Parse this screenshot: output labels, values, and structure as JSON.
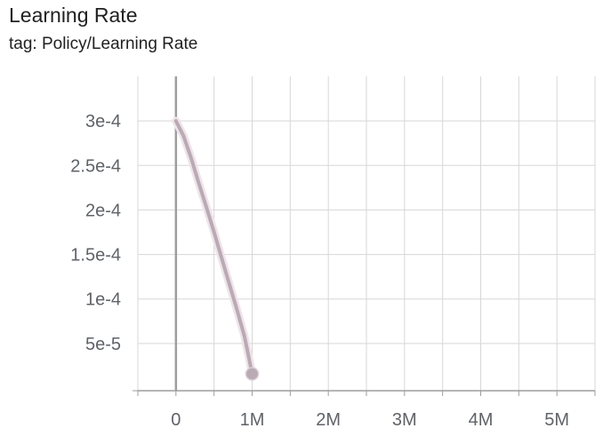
{
  "chart_data": {
    "type": "line",
    "title": "Learning Rate",
    "subtitle": "tag: Policy/Learning Rate",
    "xlabel": "",
    "ylabel": "",
    "xlim": [
      -500000,
      5500000
    ],
    "ylim": [
      -3e-06,
      0.00035
    ],
    "xticks": [
      0,
      1000000,
      2000000,
      3000000,
      4000000,
      5000000
    ],
    "xtick_labels": [
      "0",
      "1M",
      "2M",
      "3M",
      "4M",
      "5M"
    ],
    "yticks": [
      5e-05,
      0.0001,
      0.00015,
      0.0002,
      0.00025,
      0.0003
    ],
    "ytick_labels": [
      "5e-5",
      "1e-4",
      "1.5e-4",
      "2e-4",
      "2.5e-4",
      "3e-4"
    ],
    "grid": true,
    "series": [
      {
        "color": "#b9aab3",
        "x": [
          0,
          100000,
          200000,
          300000,
          400000,
          500000,
          600000,
          700000,
          800000,
          900000,
          1000000
        ],
        "y": [
          0.0003,
          0.000283,
          0.000258,
          0.00023,
          0.000203,
          0.000175,
          0.000146,
          0.000117,
          8.8e-05,
          5.8e-05,
          1.6e-05
        ]
      }
    ],
    "highlight_point": {
      "x": 1000000,
      "y": 1.6e-05
    }
  }
}
